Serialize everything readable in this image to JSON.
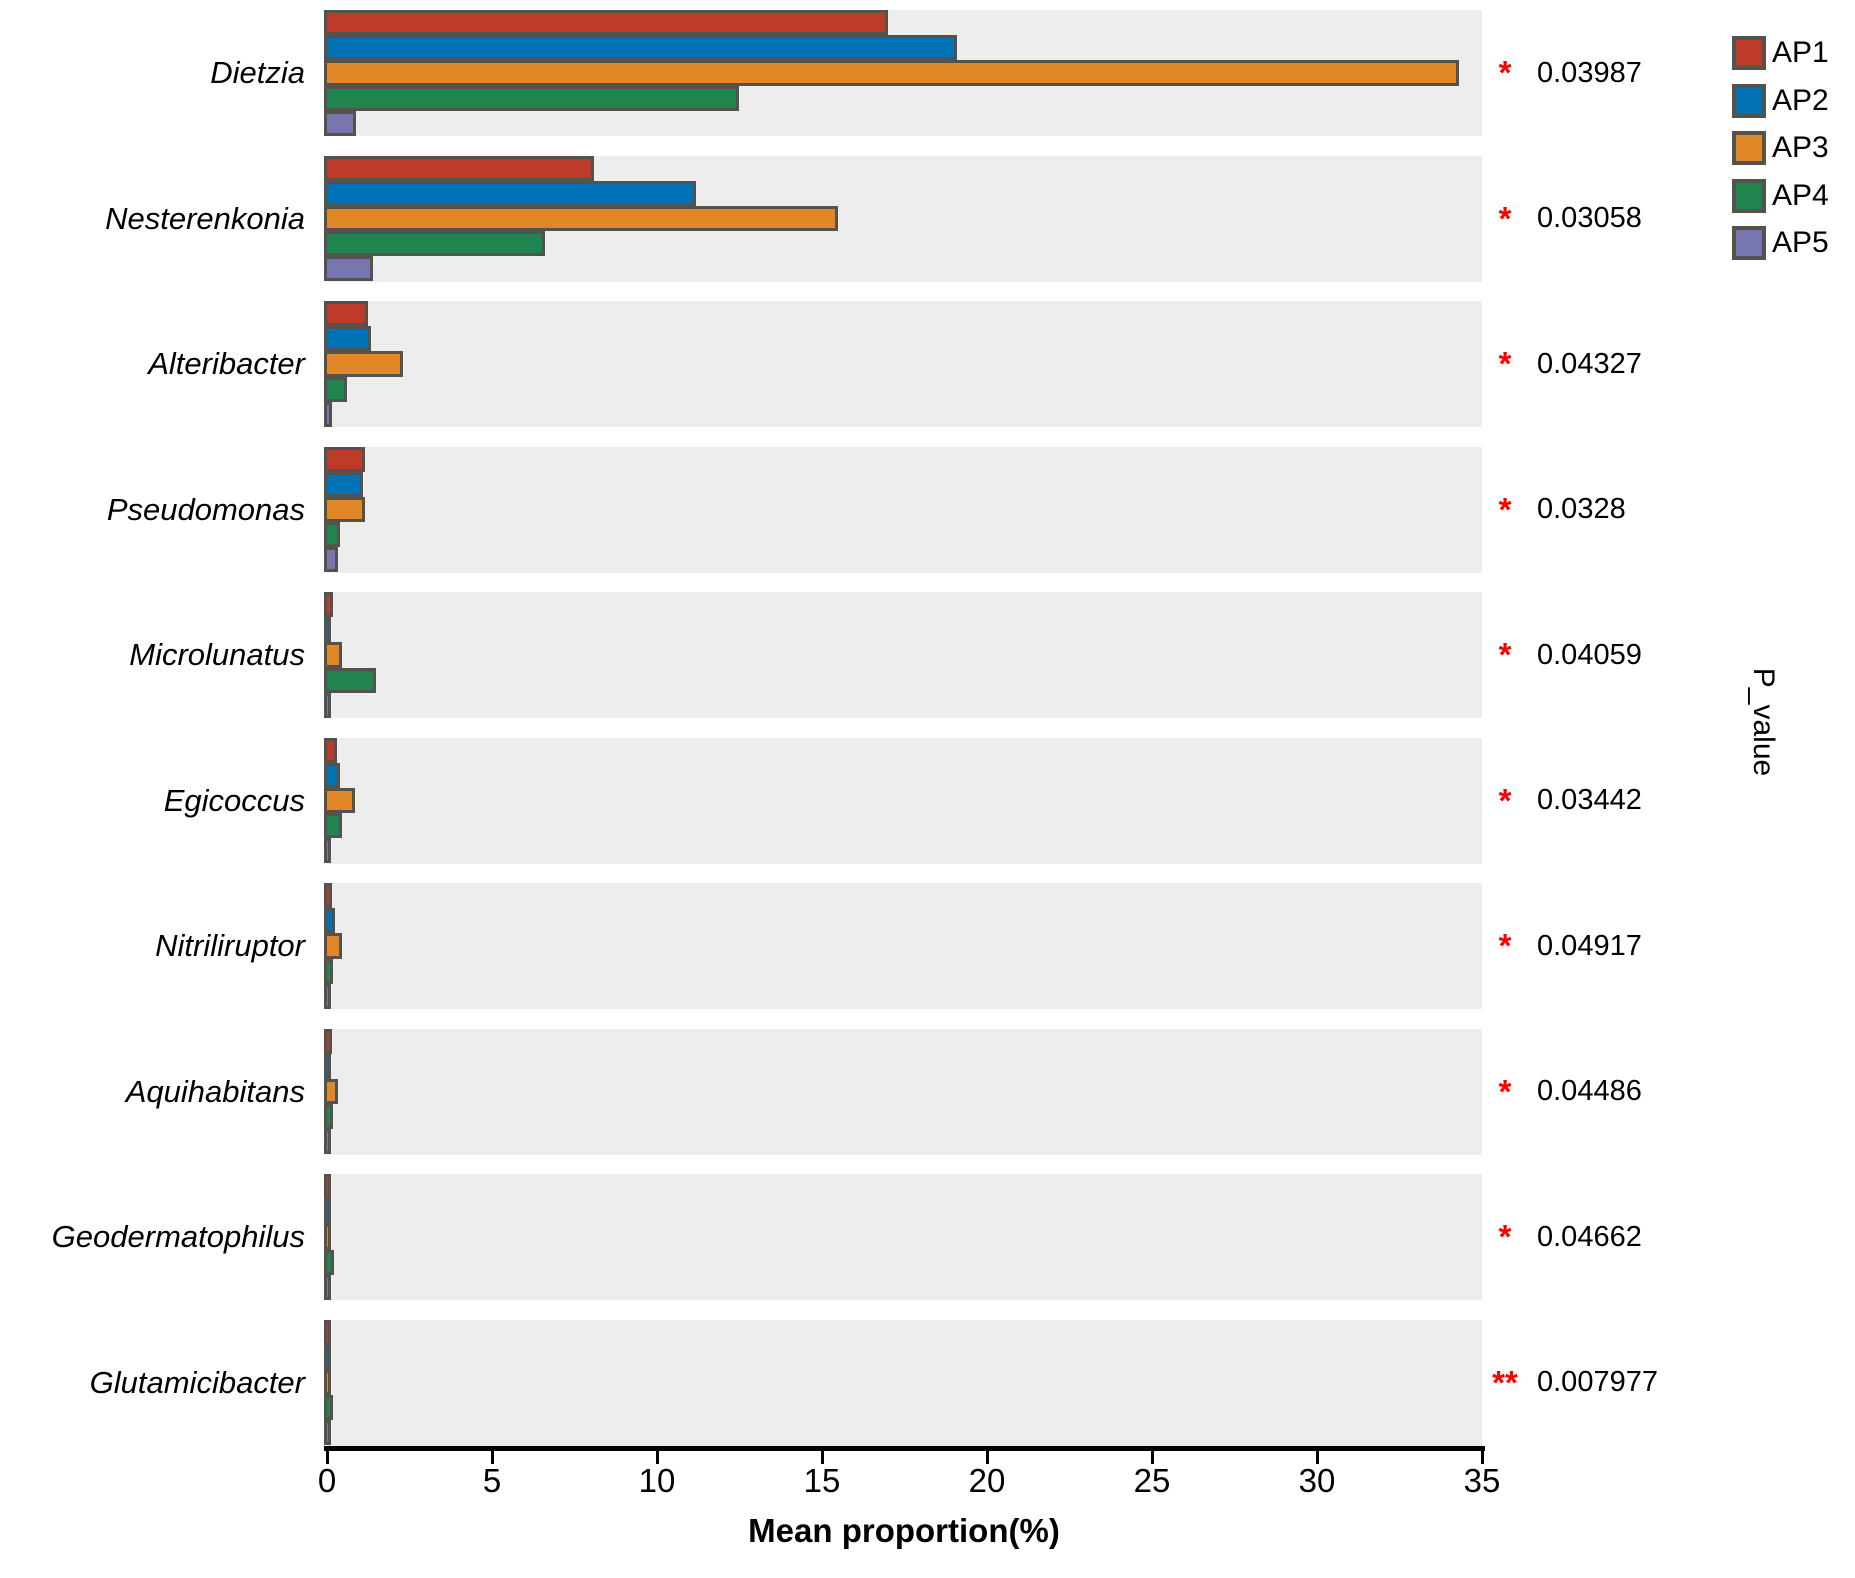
{
  "chart_data": {
    "type": "bar",
    "orientation": "horizontal",
    "xlabel": "Mean proportion(%)",
    "right_axis_label": "P_value",
    "xlim": [
      0,
      35
    ],
    "xticks": [
      0,
      5,
      10,
      15,
      20,
      25,
      30,
      35
    ],
    "grid": false,
    "legend_position": "top-right",
    "categories": [
      "Dietzia",
      "Nesterenkonia",
      "Alteribacter",
      "Pseudomonas",
      "Microlunatus",
      "Egicoccus",
      "Nitriliruptor",
      "Aquihabitans",
      "Geodermatophilus",
      "Glutamicibacter"
    ],
    "series": [
      {
        "name": "AP1",
        "color": "#BC3C29",
        "values": [
          16.9,
          8.0,
          1.15,
          1.05,
          0.1,
          0.2,
          0.07,
          0.07,
          0.02,
          0.03
        ]
      },
      {
        "name": "AP2",
        "color": "#0072B5",
        "values": [
          19.0,
          11.1,
          1.25,
          1.0,
          0.02,
          0.3,
          0.15,
          0.02,
          0.02,
          0.02
        ]
      },
      {
        "name": "AP3",
        "color": "#E18727",
        "values": [
          34.2,
          15.4,
          2.2,
          1.05,
          0.35,
          0.75,
          0.37,
          0.25,
          0.03,
          0.03
        ]
      },
      {
        "name": "AP4",
        "color": "#20854E",
        "values": [
          12.4,
          6.5,
          0.5,
          0.3,
          1.4,
          0.35,
          0.1,
          0.08,
          0.12,
          0.1
        ]
      },
      {
        "name": "AP5",
        "color": "#7876B1",
        "values": [
          0.8,
          1.3,
          0.05,
          0.25,
          0.02,
          0.03,
          0.02,
          0.02,
          0.02,
          0.02
        ]
      }
    ],
    "p_values": [
      {
        "stars": "*",
        "value": "0.03987"
      },
      {
        "stars": "*",
        "value": "0.03058"
      },
      {
        "stars": "*",
        "value": "0.04327"
      },
      {
        "stars": "*",
        "value": "0.0328"
      },
      {
        "stars": "*",
        "value": "0.04059"
      },
      {
        "stars": "*",
        "value": "0.03442"
      },
      {
        "stars": "*",
        "value": "0.04917"
      },
      {
        "stars": "*",
        "value": "0.04486"
      },
      {
        "stars": "*",
        "value": "0.04662"
      },
      {
        "stars": "**",
        "value": "0.007977"
      }
    ],
    "style": {
      "band_bg_color": "#EDEDED",
      "bar_border_color": "#53524C",
      "star_color": "#FF0000",
      "axis_color": "#000000"
    }
  }
}
